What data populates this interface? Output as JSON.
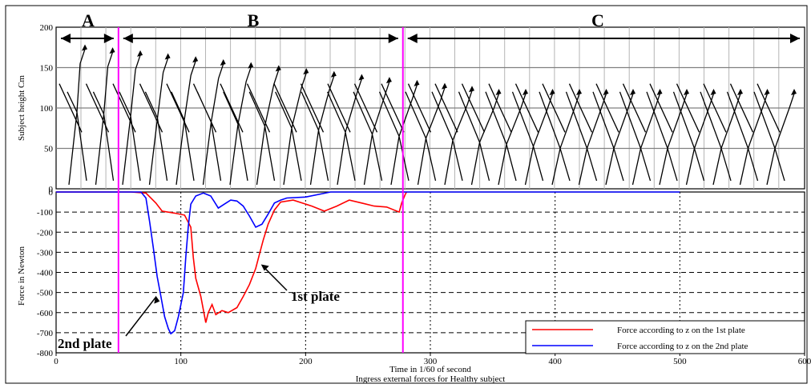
{
  "chart_data": [
    {
      "type": "line",
      "panel": "top",
      "ylabel": "Subject height Cm",
      "ylim": [
        0,
        200
      ],
      "yticks": [
        0,
        50,
        100,
        150,
        200
      ],
      "grid": true,
      "content": "stick-figure motion sequence",
      "phases": [
        {
          "label": "A",
          "from": 0,
          "to": 50
        },
        {
          "label": "B",
          "from": 50,
          "to": 278
        },
        {
          "label": "C",
          "from": 278,
          "to": 600
        }
      ],
      "markers": [
        50,
        278
      ]
    },
    {
      "type": "line",
      "panel": "bottom",
      "ylabel": "Force in Newton",
      "xlabel": "Time in 1/60 of second",
      "caption": "Ingress external forces for Healthy subject",
      "xlim": [
        0,
        600
      ],
      "ylim": [
        -800,
        0
      ],
      "xticks": [
        0,
        100,
        200,
        300,
        400,
        500,
        600
      ],
      "yticks": [
        0,
        -100,
        -200,
        -300,
        -400,
        -500,
        -600,
        -700,
        -800
      ],
      "grid": true,
      "legend": "bottom-right",
      "series": [
        {
          "name": "Force according to z on the 1st plate",
          "color": "#ff0000",
          "points": [
            [
              0,
              0
            ],
            [
              60,
              0
            ],
            [
              72,
              -5
            ],
            [
              80,
              -55
            ],
            [
              85,
              -95
            ],
            [
              95,
              -105
            ],
            [
              103,
              -115
            ],
            [
              108,
              -175
            ],
            [
              110,
              -325
            ],
            [
              112,
              -430
            ],
            [
              116,
              -520
            ],
            [
              120,
              -650
            ],
            [
              122,
              -600
            ],
            [
              125,
              -560
            ],
            [
              128,
              -610
            ],
            [
              133,
              -590
            ],
            [
              138,
              -600
            ],
            [
              145,
              -575
            ],
            [
              150,
              -520
            ],
            [
              155,
              -460
            ],
            [
              160,
              -380
            ],
            [
              163,
              -310
            ],
            [
              166,
              -240
            ],
            [
              170,
              -160
            ],
            [
              175,
              -90
            ],
            [
              180,
              -50
            ],
            [
              190,
              -40
            ],
            [
              205,
              -70
            ],
            [
              215,
              -95
            ],
            [
              225,
              -70
            ],
            [
              235,
              -40
            ],
            [
              245,
              -55
            ],
            [
              255,
              -70
            ],
            [
              265,
              -75
            ],
            [
              275,
              -100
            ],
            [
              277,
              -55
            ],
            [
              280,
              -10
            ],
            [
              281,
              0
            ]
          ]
        },
        {
          "name": "Force according to z on the 2nd plate",
          "color": "#0000ff",
          "points": [
            [
              0,
              0
            ],
            [
              68,
              0
            ],
            [
              72,
              -30
            ],
            [
              75,
              -150
            ],
            [
              78,
              -280
            ],
            [
              81,
              -420
            ],
            [
              84,
              -520
            ],
            [
              87,
              -620
            ],
            [
              90,
              -680
            ],
            [
              92,
              -705
            ],
            [
              95,
              -690
            ],
            [
              98,
              -620
            ],
            [
              100,
              -560
            ],
            [
              102,
              -500
            ],
            [
              104,
              -320
            ],
            [
              106,
              -170
            ],
            [
              108,
              -60
            ],
            [
              112,
              -20
            ],
            [
              118,
              -5
            ],
            [
              124,
              -20
            ],
            [
              130,
              -80
            ],
            [
              135,
              -60
            ],
            [
              140,
              -40
            ],
            [
              145,
              -45
            ],
            [
              150,
              -70
            ],
            [
              155,
              -120
            ],
            [
              160,
              -175
            ],
            [
              165,
              -160
            ],
            [
              170,
              -110
            ],
            [
              175,
              -55
            ],
            [
              180,
              -40
            ],
            [
              185,
              -30
            ],
            [
              200,
              -25
            ],
            [
              220,
              0
            ],
            [
              500,
              0
            ]
          ]
        }
      ],
      "annotations": [
        {
          "text": "1st plate",
          "target": [
            163,
            -360
          ]
        },
        {
          "text": "2nd plate",
          "target": [
            76,
            -500
          ]
        }
      ],
      "markers": [
        50,
        278
      ]
    }
  ],
  "colors": {
    "plate1": "#ff0000",
    "plate2": "#0000ff",
    "marker": "#ff00ff"
  }
}
